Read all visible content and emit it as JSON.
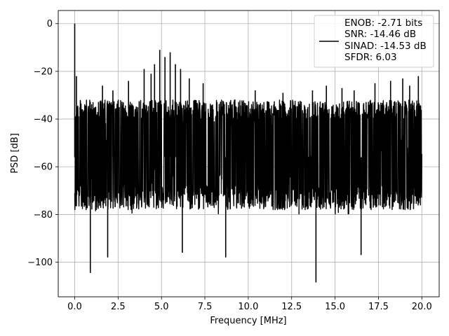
{
  "chart_data": {
    "type": "line",
    "xlabel": "Frequency [MHz]",
    "ylabel": "PSD [dB]",
    "xlim": [
      -0.95,
      21.0
    ],
    "ylim": [
      -114.5,
      5.5
    ],
    "xticks": [
      0.0,
      2.5,
      5.0,
      7.5,
      10.0,
      12.5,
      15.0,
      17.5,
      20.0
    ],
    "xtick_labels": [
      "0.0",
      "2.5",
      "5.0",
      "7.5",
      "10.0",
      "12.5",
      "15.0",
      "17.5",
      "20.0"
    ],
    "yticks": [
      0,
      -20,
      -40,
      -60,
      -80,
      -100
    ],
    "ytick_labels": [
      "0",
      "−20",
      "−40",
      "−60",
      "−80",
      "−100"
    ],
    "grid": true,
    "legend": {
      "placement": "top-right",
      "entries": [
        "ENOB: -2.71 bits",
        "SNR: -14.46 dB",
        "SINAD: -14.53 dB",
        "SFDR: 6.03"
      ]
    },
    "series": [
      {
        "color": "#000000",
        "x_range": [
          0,
          20
        ],
        "noise_band_db": [
          -80,
          -32
        ],
        "spikes": [
          {
            "x": 0.0,
            "y": 0
          },
          {
            "x": 0.1,
            "y": -22
          },
          {
            "x": 0.9,
            "y": -104.5
          },
          {
            "x": 1.6,
            "y": -26
          },
          {
            "x": 1.9,
            "y": -98
          },
          {
            "x": 2.2,
            "y": -28
          },
          {
            "x": 3.1,
            "y": -24
          },
          {
            "x": 4.0,
            "y": -19
          },
          {
            "x": 4.4,
            "y": -21
          },
          {
            "x": 4.6,
            "y": -17
          },
          {
            "x": 4.9,
            "y": -11
          },
          {
            "x": 5.2,
            "y": -14
          },
          {
            "x": 5.5,
            "y": -12
          },
          {
            "x": 5.8,
            "y": -17
          },
          {
            "x": 6.1,
            "y": -19
          },
          {
            "x": 6.2,
            "y": -96
          },
          {
            "x": 6.6,
            "y": -23
          },
          {
            "x": 7.4,
            "y": -25
          },
          {
            "x": 8.7,
            "y": -98
          },
          {
            "x": 10.4,
            "y": -28
          },
          {
            "x": 12.0,
            "y": -29
          },
          {
            "x": 13.7,
            "y": -28
          },
          {
            "x": 13.9,
            "y": -108.5
          },
          {
            "x": 14.5,
            "y": -26
          },
          {
            "x": 15.4,
            "y": -27
          },
          {
            "x": 16.1,
            "y": -28
          },
          {
            "x": 16.5,
            "y": -97
          },
          {
            "x": 17.3,
            "y": -25
          },
          {
            "x": 18.2,
            "y": -24
          },
          {
            "x": 18.9,
            "y": -23
          },
          {
            "x": 19.3,
            "y": -26
          },
          {
            "x": 19.8,
            "y": -22
          }
        ]
      }
    ]
  }
}
